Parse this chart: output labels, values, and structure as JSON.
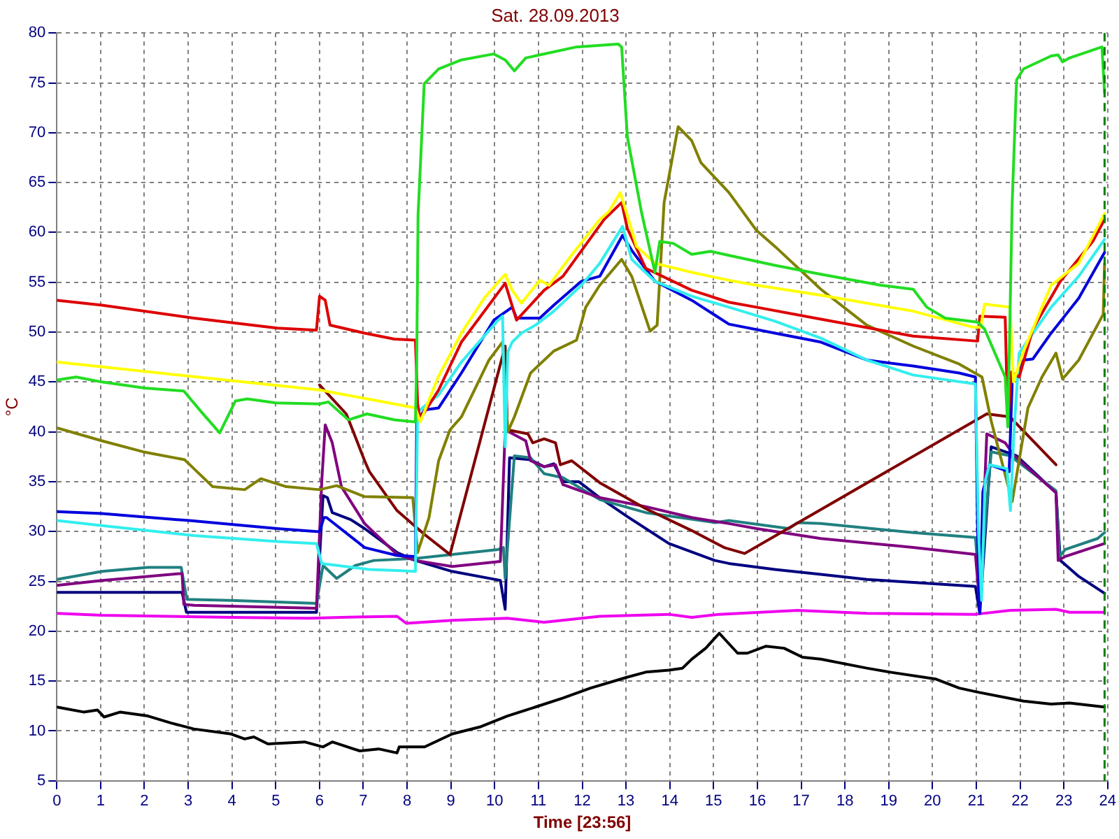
{
  "chart_data": {
    "type": "line",
    "title": "Sat. 28.09.2013",
    "xlabel": "Time [23:56]",
    "ylabel": "°C",
    "xlim": [
      0,
      24
    ],
    "ylim": [
      5,
      80
    ],
    "xticks": [
      0,
      1,
      2,
      3,
      4,
      5,
      6,
      7,
      8,
      9,
      10,
      11,
      12,
      13,
      14,
      15,
      16,
      17,
      18,
      19,
      20,
      21,
      22,
      23,
      24
    ],
    "yticks": [
      5,
      10,
      15,
      20,
      25,
      30,
      35,
      40,
      45,
      50,
      55,
      60,
      65,
      70,
      75,
      80
    ],
    "grid": true,
    "legend": false,
    "marker": "none",
    "line_style": "solid",
    "ref_lines": [
      {
        "axis": "x",
        "value": 23.93,
        "color": "#008000",
        "line_style": "dashed"
      }
    ],
    "series": [
      {
        "color": "#22dd22",
        "x": [
          0,
          0.44,
          1.03,
          2,
          2.9,
          3.3,
          3.72,
          4.08,
          4.35,
          5,
          6,
          6.2,
          6.66,
          7.08,
          7.71,
          8.19,
          8.22,
          8.25,
          8.39,
          8.72,
          9.24,
          9.98,
          10.24,
          10.45,
          10.71,
          11.87,
          12.82,
          12.9,
          13.03,
          13.35,
          13.66,
          13.77,
          14.08,
          14.5,
          14.93,
          15.35,
          16.4,
          17.45,
          18.82,
          19.56,
          19.87,
          20.29,
          21.03,
          21.19,
          21.66,
          21.72,
          21.82,
          21.92,
          22.08,
          22.71,
          22.87,
          22.97,
          23.13,
          23.87,
          23.93
        ],
        "values": [
          45.2,
          45.5,
          45.0,
          44.4,
          44.1,
          42.0,
          39.9,
          43.1,
          43.3,
          42.9,
          42.8,
          43.0,
          41.2,
          41.8,
          41.2,
          41.0,
          47.2,
          61.7,
          74.9,
          76.4,
          77.3,
          77.9,
          77.3,
          76.2,
          77.5,
          78.6,
          78.9,
          78.6,
          69.6,
          62.1,
          56.0,
          59.1,
          58.9,
          57.8,
          58.1,
          57.7,
          56.7,
          55.8,
          54.7,
          54.3,
          52.5,
          51.4,
          51.0,
          50.3,
          45.5,
          40.5,
          63.0,
          75.3,
          76.4,
          77.7,
          77.8,
          77.1,
          77.5,
          78.6,
          74.0
        ]
      },
      {
        "color": "#ffff00",
        "x": [
          0,
          6,
          7.71,
          8.19,
          8.3,
          8.71,
          9.24,
          9.76,
          10.24,
          10.4,
          10.61,
          11.03,
          11.24,
          11.77,
          12.4,
          12.61,
          12.87,
          13.03,
          13.24,
          13.66,
          14.5,
          15.35,
          15.98,
          17.45,
          19.56,
          20.92,
          21.1,
          21.19,
          21.77,
          21.85,
          22.08,
          22.71,
          23.34,
          23.93
        ],
        "values": [
          47.0,
          44.2,
          42.8,
          42.4,
          41.0,
          45.5,
          49.9,
          53.4,
          55.8,
          54.2,
          52.9,
          55.2,
          54.7,
          57.8,
          61.3,
          62.1,
          64.0,
          61.7,
          58.6,
          56.9,
          56.0,
          55.2,
          54.7,
          53.7,
          52.1,
          50.5,
          50.5,
          52.8,
          52.5,
          45.0,
          48.1,
          54.7,
          56.9,
          61.9
        ]
      },
      {
        "color": "#dd0000",
        "x": [
          0,
          1.03,
          3.13,
          5.03,
          5.93,
          6,
          6.13,
          6.24,
          7.03,
          7.71,
          8.19,
          8.24,
          8.3,
          8.72,
          9.24,
          10.24,
          10.5,
          11.13,
          11.56,
          12.5,
          12.9,
          13.03,
          13.45,
          14.5,
          15.35,
          15.98,
          17.45,
          19.56,
          21.03,
          21.08,
          21.66,
          21.72,
          21.8,
          21.98,
          22.29,
          22.92,
          23.66,
          23.93
        ],
        "values": [
          53.2,
          52.7,
          51.4,
          50.4,
          50.2,
          53.6,
          53.2,
          50.7,
          49.9,
          49.3,
          49.2,
          42.8,
          41.3,
          44.2,
          49.0,
          54.9,
          51.2,
          54.2,
          55.6,
          61.3,
          63.0,
          60.4,
          56.4,
          54.2,
          53.0,
          52.5,
          51.3,
          49.6,
          49.1,
          51.6,
          51.5,
          40.7,
          46.0,
          45.5,
          50.3,
          55.1,
          59.1,
          61.3
        ]
      },
      {
        "color": "#33eeee",
        "x": [
          0,
          1.03,
          3.13,
          5.03,
          5.93,
          6.05,
          7.14,
          7.77,
          8.19,
          8.24,
          8.72,
          9.24,
          10.08,
          10.18,
          10.24,
          10.3,
          10.4,
          10.61,
          10.93,
          11.35,
          11.98,
          12.4,
          12.92,
          13.13,
          13.66,
          14.5,
          15.35,
          16.4,
          17.45,
          18.5,
          19.56,
          20.98,
          21.05,
          21.12,
          21.2,
          21.3,
          21.7,
          21.78,
          21.86,
          21.98,
          22.71,
          23.34,
          23.93
        ],
        "values": [
          31.1,
          30.6,
          29.6,
          29.0,
          28.8,
          26.8,
          26.2,
          26.1,
          26.0,
          42.0,
          43.7,
          47.0,
          51.2,
          51.6,
          38.5,
          48.0,
          49.0,
          49.9,
          50.7,
          52.1,
          54.7,
          56.9,
          60.6,
          57.3,
          55.1,
          53.6,
          52.5,
          51.1,
          49.4,
          47.2,
          45.7,
          44.8,
          30.0,
          23.1,
          35.0,
          36.7,
          36.3,
          32.1,
          40.0,
          47.9,
          52.5,
          55.6,
          59.3
        ]
      },
      {
        "color": "#0000dd",
        "x": [
          0,
          1.03,
          3.03,
          5.03,
          5.93,
          6,
          6.1,
          6.16,
          7.03,
          7.77,
          8.19,
          8.22,
          8.4,
          8.72,
          9.24,
          9.98,
          10.4,
          10.5,
          11.03,
          11.35,
          11.98,
          12.4,
          12.92,
          13.13,
          13.66,
          14.5,
          15.35,
          16.4,
          17.45,
          18.5,
          19.56,
          20.61,
          20.98,
          21.03,
          21.08,
          21.15,
          21.3,
          21.75,
          21.82,
          22.08,
          22.29,
          22.71,
          23.34,
          23.93
        ],
        "values": [
          32.0,
          31.8,
          31.1,
          30.3,
          30.0,
          30.0,
          31.4,
          31.4,
          28.4,
          27.6,
          27.5,
          41.0,
          42.2,
          42.4,
          45.9,
          51.2,
          52.5,
          51.4,
          51.4,
          52.7,
          55.1,
          55.6,
          59.7,
          58.2,
          55.1,
          53.2,
          50.8,
          49.9,
          49.0,
          47.2,
          46.6,
          45.9,
          45.5,
          30.0,
          21.8,
          34.0,
          36.7,
          36.0,
          45.0,
          47.2,
          47.3,
          49.9,
          53.4,
          58.0
        ]
      },
      {
        "color": "#808000",
        "x": [
          0,
          1.03,
          1.97,
          2.92,
          3.56,
          4.29,
          4.66,
          5.24,
          6,
          6.39,
          7.03,
          8.13,
          8.24,
          8.5,
          8.72,
          8.98,
          9.24,
          9.87,
          10.18,
          10.3,
          10.45,
          10.82,
          11.35,
          11.87,
          12.08,
          12.4,
          12.9,
          13.13,
          13.55,
          13.71,
          13.87,
          14.19,
          14.5,
          14.71,
          15.35,
          15.98,
          16.4,
          17.45,
          18.5,
          19.56,
          20.61,
          21.13,
          21.34,
          21.82,
          22.18,
          22.5,
          22.82,
          22.97,
          23.34,
          23.9,
          23.93
        ],
        "values": [
          40.4,
          39.1,
          38.0,
          37.2,
          34.5,
          34.2,
          35.3,
          34.5,
          34.2,
          34.6,
          33.5,
          33.4,
          27.9,
          31.4,
          37.1,
          40.2,
          41.5,
          47.2,
          49.0,
          40.0,
          41.5,
          45.9,
          48.1,
          49.2,
          52.5,
          54.7,
          57.3,
          55.6,
          50.1,
          50.7,
          63.0,
          70.6,
          69.2,
          67.0,
          64.0,
          60.2,
          58.6,
          54.3,
          50.7,
          48.6,
          46.8,
          45.5,
          41.1,
          33.0,
          42.4,
          45.5,
          47.9,
          45.3,
          47.2,
          51.8,
          56.9
        ]
      },
      {
        "color": "#800000",
        "x": [
          6,
          6.61,
          6.71,
          7.03,
          7.14,
          7.77,
          8.4,
          8.98,
          10.24,
          10.29,
          10.76,
          10.87,
          11.13,
          11.39,
          11.5,
          11.76,
          12.4,
          13.45,
          14.5,
          15.24,
          15.71,
          21.24,
          21.77,
          22.82
        ],
        "values": [
          44.7,
          41.8,
          40.7,
          37.1,
          36.0,
          32.1,
          29.7,
          27.7,
          48.6,
          40.2,
          39.8,
          38.9,
          39.3,
          38.9,
          36.7,
          37.1,
          34.9,
          32.3,
          30.1,
          28.4,
          27.8,
          41.8,
          41.5,
          36.7
        ]
      },
      {
        "color": "#800080",
        "x": [
          0,
          1.03,
          2.86,
          2.9,
          3.13,
          5.93,
          6.05,
          6.13,
          6.29,
          6.5,
          7.03,
          7.77,
          8.19,
          9.03,
          10.13,
          10.24,
          10.71,
          10.82,
          11.13,
          11.39,
          11.56,
          12.4,
          13.45,
          14.5,
          15.35,
          15.98,
          17.45,
          19.56,
          20.98,
          21.08,
          21.24,
          21.66,
          21.87,
          22.82,
          22.87,
          23.03,
          23.93
        ],
        "values": [
          24.6,
          25.1,
          25.8,
          22.7,
          22.6,
          22.3,
          35.0,
          40.7,
          38.9,
          34.5,
          30.8,
          27.7,
          27.1,
          26.5,
          27.0,
          40.2,
          39.1,
          37.1,
          36.5,
          36.7,
          34.7,
          33.4,
          32.5,
          31.4,
          30.8,
          30.3,
          29.3,
          28.4,
          27.7,
          22.6,
          39.8,
          38.9,
          37.6,
          33.9,
          27.1,
          27.5,
          28.8
        ]
      },
      {
        "color": "#208080",
        "x": [
          0,
          1.03,
          2.08,
          2.84,
          2.97,
          3.98,
          5.93,
          6.08,
          6.39,
          6.82,
          7.24,
          8.19,
          10.08,
          10.2,
          10.24,
          10.45,
          10.82,
          11.13,
          11.56,
          12.4,
          13.45,
          15.03,
          15.35,
          16.72,
          16.92,
          17.45,
          19.56,
          20.98,
          21.08,
          21.34,
          21.77,
          22.82,
          22.9,
          23.03,
          23.77,
          23.93
        ],
        "values": [
          25.2,
          26.0,
          26.4,
          26.4,
          23.2,
          23.1,
          22.8,
          26.6,
          25.3,
          26.6,
          27.1,
          27.3,
          28.2,
          28.4,
          25.3,
          37.6,
          37.4,
          35.8,
          35.4,
          33.2,
          31.9,
          30.9,
          31.1,
          30.3,
          30.9,
          30.8,
          29.9,
          29.4,
          24.0,
          38.0,
          37.6,
          34.1,
          27.5,
          28.2,
          29.3,
          29.9
        ]
      },
      {
        "color": "#000080",
        "x": [
          0,
          2.86,
          2.96,
          5.93,
          6.08,
          6.18,
          6.29,
          6.71,
          7.03,
          7.77,
          8.19,
          9.03,
          10.13,
          10.24,
          10.34,
          10.82,
          11.13,
          11.35,
          11.56,
          11.92,
          12.4,
          13.03,
          13.98,
          15.03,
          15.35,
          16.4,
          17.45,
          18.5,
          19.56,
          20.98,
          21.08,
          21.34,
          21.66,
          21.92,
          22.82,
          22.92,
          23.34,
          23.93
        ],
        "values": [
          23.9,
          23.9,
          21.9,
          21.9,
          33.6,
          33.4,
          31.9,
          31.2,
          30.3,
          27.9,
          27.1,
          26.0,
          25.1,
          22.2,
          37.4,
          37.2,
          36.5,
          36.8,
          35.0,
          35.0,
          33.4,
          31.5,
          28.8,
          27.1,
          26.8,
          26.2,
          25.7,
          25.2,
          24.9,
          24.5,
          21.8,
          38.5,
          38.0,
          37.6,
          33.9,
          27.1,
          25.5,
          23.8
        ]
      },
      {
        "color": "#ee00ee",
        "x": [
          0,
          1.03,
          3.98,
          5.77,
          6.5,
          7.77,
          7.98,
          9.03,
          10.29,
          11.13,
          12.4,
          13.98,
          14.5,
          15.13,
          16.92,
          18.5,
          20.98,
          21.77,
          22.82,
          23.13,
          23.93
        ],
        "values": [
          21.8,
          21.6,
          21.4,
          21.3,
          21.4,
          21.5,
          20.8,
          21.1,
          21.3,
          20.9,
          21.5,
          21.7,
          21.4,
          21.7,
          22.1,
          21.8,
          21.7,
          22.1,
          22.2,
          21.9,
          21.9
        ]
      },
      {
        "color": "#000000",
        "x": [
          0,
          0.61,
          0.93,
          1.08,
          1.45,
          2.08,
          2.61,
          3.13,
          3.98,
          4.29,
          4.5,
          4.82,
          5.66,
          6.08,
          6.29,
          6.92,
          7.35,
          7.77,
          7.82,
          8.4,
          9.03,
          9.66,
          10.29,
          10.93,
          11.56,
          12.19,
          13.03,
          13.45,
          13.98,
          14.29,
          14.5,
          14.82,
          15.13,
          15.55,
          15.77,
          16.19,
          16.61,
          17.03,
          17.45,
          18.5,
          19.03,
          20.08,
          20.61,
          21.03,
          22.08,
          22.71,
          23.13,
          23.93
        ],
        "values": [
          12.4,
          11.9,
          12.1,
          11.4,
          11.9,
          11.5,
          10.8,
          10.2,
          9.7,
          9.2,
          9.4,
          8.7,
          8.9,
          8.4,
          8.9,
          8.0,
          8.2,
          7.8,
          8.4,
          8.4,
          9.7,
          10.4,
          11.5,
          12.4,
          13.3,
          14.3,
          15.4,
          15.9,
          16.1,
          16.3,
          17.2,
          18.3,
          19.8,
          17.8,
          17.8,
          18.5,
          18.3,
          17.4,
          17.2,
          16.3,
          15.9,
          15.2,
          14.3,
          13.9,
          13.0,
          12.7,
          12.8,
          12.4
        ]
      }
    ]
  }
}
